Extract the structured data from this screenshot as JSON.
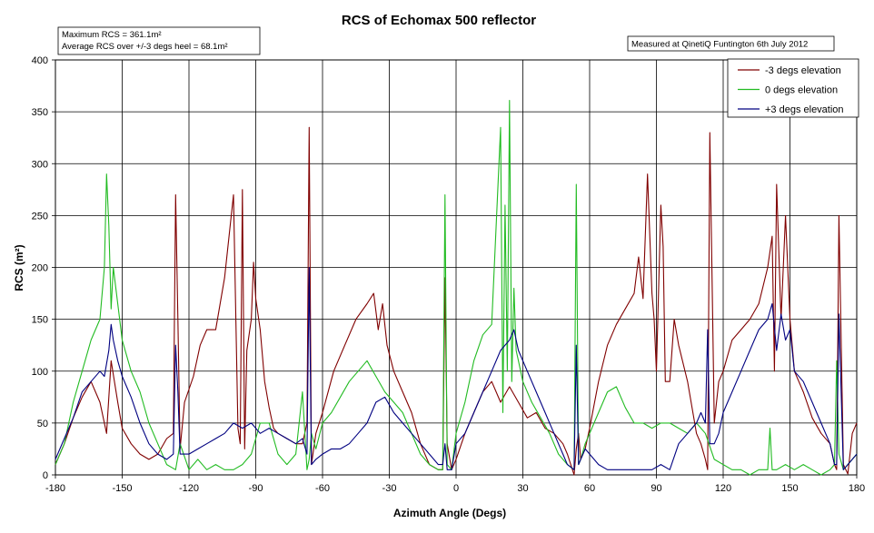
{
  "chart_data": {
    "type": "line",
    "title": "RCS of Echomax 500 reflector",
    "xlabel": "Azimuth Angle (Degs)",
    "ylabel": "RCS (m²)",
    "xlim": [
      -180,
      180
    ],
    "ylim": [
      0,
      400
    ],
    "x_ticks": [
      "-180",
      "-150",
      "-120",
      "-90",
      "-60",
      "-30",
      "0",
      "30",
      "60",
      "90",
      "120",
      "150",
      "180"
    ],
    "y_ticks": [
      "0",
      "50",
      "100",
      "150",
      "200",
      "250",
      "300",
      "350",
      "400"
    ],
    "grid": true,
    "legend_position": "top-right",
    "annotations": {
      "stats_line1": "Maximum RCS = 361.1m²",
      "stats_line2": "Average RCS over +/-3 degs heel = 68.1m²",
      "measured": "Measured at QinetiQ Funtington 6th July 2012"
    },
    "series": [
      {
        "name": "-3 degs elevation",
        "color": "#800000",
        "x": [
          -180,
          -176,
          -172,
          -168,
          -164,
          -160,
          -157,
          -155,
          -152,
          -150,
          -146,
          -142,
          -138,
          -134,
          -130,
          -127,
          -126,
          -125,
          -124,
          -122,
          -118,
          -115,
          -112,
          -108,
          -104,
          -100,
          -98,
          -97,
          -96,
          -95,
          -94,
          -92,
          -91,
          -90,
          -88,
          -86,
          -84,
          -82,
          -80,
          -76,
          -72,
          -69,
          -67,
          -66,
          -65,
          -63,
          -60,
          -55,
          -50,
          -45,
          -40,
          -37,
          -35,
          -33,
          -31,
          -28,
          -24,
          -20,
          -16,
          -12,
          -8,
          -6,
          -5,
          -4,
          -2,
          0,
          4,
          8,
          12,
          16,
          20,
          24,
          28,
          32,
          36,
          40,
          44,
          48,
          50,
          53,
          54,
          55,
          56,
          58,
          60,
          64,
          68,
          72,
          76,
          80,
          82,
          84,
          86,
          88,
          89,
          90,
          92,
          93,
          94,
          96,
          98,
          100,
          104,
          108,
          110,
          112,
          113,
          114,
          116,
          118,
          120,
          124,
          128,
          132,
          136,
          140,
          142,
          143,
          144,
          146,
          148,
          150,
          152,
          156,
          160,
          164,
          168,
          170,
          171,
          172,
          174,
          176,
          178,
          180
        ],
        "y": [
          10,
          30,
          55,
          75,
          90,
          70,
          40,
          110,
          70,
          45,
          30,
          20,
          15,
          20,
          35,
          40,
          270,
          150,
          25,
          70,
          95,
          125,
          140,
          140,
          190,
          270,
          45,
          30,
          275,
          25,
          120,
          150,
          205,
          170,
          140,
          90,
          65,
          45,
          40,
          35,
          30,
          30,
          50,
          335,
          10,
          40,
          60,
          100,
          125,
          150,
          165,
          175,
          140,
          165,
          125,
          100,
          80,
          60,
          30,
          10,
          5,
          5,
          190,
          30,
          5,
          15,
          40,
          60,
          80,
          90,
          70,
          85,
          70,
          55,
          60,
          45,
          40,
          30,
          20,
          0,
          25,
          40,
          15,
          25,
          45,
          90,
          125,
          145,
          160,
          175,
          210,
          170,
          290,
          175,
          150,
          100,
          260,
          220,
          90,
          90,
          150,
          125,
          90,
          40,
          30,
          15,
          5,
          330,
          50,
          90,
          100,
          130,
          140,
          150,
          165,
          200,
          230,
          100,
          280,
          150,
          250,
          150,
          100,
          80,
          55,
          40,
          30,
          10,
          5,
          250,
          10,
          1,
          40,
          50
        ]
      },
      {
        "name": "0 degs elevation",
        "color": "#22bb22",
        "x": [
          -180,
          -176,
          -172,
          -168,
          -164,
          -160,
          -158,
          -157,
          -156,
          -155,
          -154,
          -150,
          -146,
          -142,
          -138,
          -134,
          -130,
          -126,
          -124,
          -120,
          -116,
          -112,
          -108,
          -104,
          -100,
          -96,
          -92,
          -88,
          -84,
          -80,
          -76,
          -72,
          -69,
          -67,
          -66,
          -65,
          -63,
          -60,
          -56,
          -52,
          -48,
          -44,
          -40,
          -36,
          -32,
          -28,
          -24,
          -20,
          -16,
          -12,
          -8,
          -6,
          -5,
          -4,
          -2,
          0,
          4,
          8,
          12,
          16,
          20,
          21,
          22,
          23,
          24,
          25,
          26,
          27,
          28,
          30,
          34,
          38,
          42,
          46,
          50,
          53,
          54,
          55,
          56,
          58,
          60,
          64,
          68,
          72,
          76,
          80,
          84,
          88,
          92,
          96,
          100,
          104,
          108,
          112,
          116,
          120,
          124,
          128,
          132,
          136,
          140,
          141,
          142,
          144,
          148,
          152,
          156,
          160,
          164,
          168,
          170,
          171,
          172,
          174,
          176,
          178,
          180
        ],
        "y": [
          10,
          30,
          70,
          100,
          130,
          150,
          200,
          290,
          240,
          160,
          200,
          130,
          100,
          80,
          50,
          30,
          10,
          5,
          30,
          5,
          15,
          5,
          10,
          5,
          5,
          10,
          20,
          50,
          50,
          20,
          10,
          20,
          80,
          5,
          15,
          40,
          25,
          50,
          60,
          75,
          90,
          100,
          110,
          95,
          80,
          70,
          60,
          40,
          20,
          10,
          5,
          5,
          270,
          10,
          5,
          40,
          70,
          110,
          135,
          145,
          335,
          60,
          260,
          100,
          361,
          90,
          180,
          120,
          110,
          90,
          70,
          55,
          40,
          20,
          10,
          5,
          280,
          10,
          15,
          30,
          40,
          60,
          80,
          85,
          65,
          50,
          50,
          45,
          50,
          50,
          45,
          40,
          50,
          40,
          15,
          10,
          5,
          5,
          0,
          5,
          5,
          45,
          5,
          5,
          10,
          5,
          10,
          5,
          0,
          5,
          10,
          110,
          20,
          5,
          10,
          15,
          20
        ]
      },
      {
        "name": "+3 degs elevation",
        "color": "#000080",
        "x": [
          -180,
          -176,
          -172,
          -168,
          -164,
          -160,
          -158,
          -156,
          -155,
          -154,
          -152,
          -150,
          -146,
          -142,
          -138,
          -134,
          -130,
          -127,
          -126,
          -125,
          -124,
          -120,
          -116,
          -112,
          -108,
          -104,
          -100,
          -96,
          -92,
          -88,
          -84,
          -80,
          -76,
          -72,
          -69,
          -67,
          -66,
          -65,
          -63,
          -60,
          -56,
          -52,
          -48,
          -44,
          -40,
          -36,
          -32,
          -28,
          -24,
          -20,
          -16,
          -12,
          -8,
          -6,
          -5,
          -4,
          -2,
          0,
          4,
          8,
          12,
          16,
          20,
          24,
          26,
          28,
          32,
          36,
          40,
          44,
          48,
          50,
          53,
          54,
          55,
          56,
          58,
          60,
          64,
          68,
          72,
          76,
          80,
          84,
          88,
          92,
          96,
          100,
          104,
          108,
          110,
          112,
          113,
          114,
          116,
          118,
          120,
          124,
          128,
          132,
          136,
          140,
          142,
          144,
          146,
          148,
          150,
          152,
          156,
          160,
          164,
          168,
          170,
          171,
          172,
          174,
          176,
          178,
          180
        ],
        "y": [
          15,
          35,
          55,
          80,
          90,
          100,
          95,
          120,
          145,
          130,
          110,
          95,
          75,
          50,
          30,
          20,
          15,
          20,
          125,
          80,
          20,
          20,
          25,
          30,
          35,
          40,
          50,
          45,
          50,
          40,
          45,
          40,
          35,
          30,
          35,
          20,
          200,
          10,
          15,
          20,
          25,
          25,
          30,
          40,
          50,
          70,
          75,
          60,
          50,
          40,
          30,
          20,
          10,
          10,
          30,
          5,
          5,
          30,
          40,
          60,
          80,
          100,
          120,
          130,
          140,
          120,
          100,
          80,
          60,
          40,
          20,
          10,
          5,
          125,
          10,
          15,
          25,
          20,
          10,
          5,
          5,
          5,
          5,
          5,
          5,
          10,
          5,
          30,
          40,
          50,
          60,
          50,
          140,
          30,
          30,
          40,
          60,
          80,
          100,
          120,
          140,
          150,
          165,
          120,
          155,
          130,
          140,
          100,
          90,
          70,
          50,
          30,
          10,
          10,
          155,
          5,
          10,
          15,
          20
        ]
      }
    ]
  }
}
